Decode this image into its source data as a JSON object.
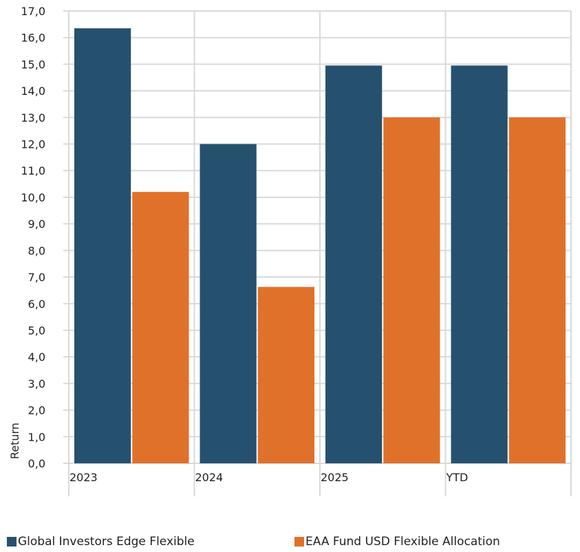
{
  "chart_data": {
    "type": "bar",
    "categories": [
      "2023",
      "2024",
      "2025",
      "YTD"
    ],
    "series": [
      {
        "name": "Global Investors Edge Flexible",
        "color": "#26516E",
        "values": [
          16.35,
          12.0,
          14.95,
          14.95
        ]
      },
      {
        "name": "EAA Fund USD Flexible Allocation",
        "color": "#E0712A",
        "values": [
          10.2,
          6.63,
          13.0,
          13.0
        ]
      }
    ],
    "title": "",
    "xlabel": "",
    "ylabel": "Return",
    "ylim": [
      0,
      17
    ],
    "yticks": [
      "0,0",
      "1,0",
      "2,0",
      "3,0",
      "4,0",
      "5,0",
      "6,0",
      "7,0",
      "8,0",
      "9,0",
      "10,0",
      "11,0",
      "12,0",
      "13,0",
      "14,0",
      "15,0",
      "16,0",
      "17,0"
    ],
    "grid": true,
    "legend_position": "bottom"
  }
}
